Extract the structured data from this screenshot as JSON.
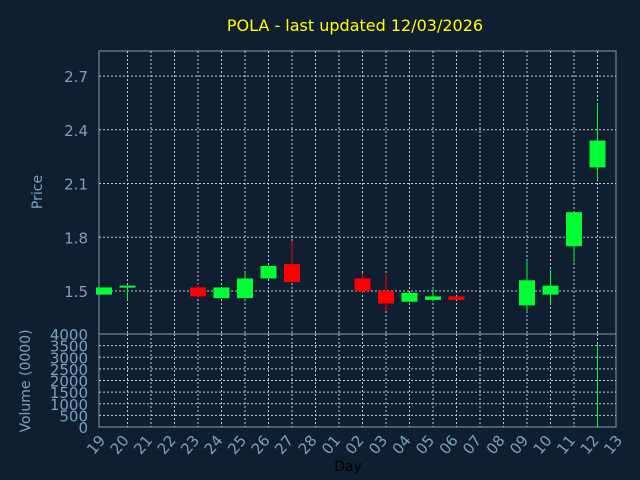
{
  "chart_data": {
    "type": "candlestick",
    "title": "POLA - last updated 12/03/2026",
    "x_label": "Day",
    "price_label": "Price",
    "volume_label": "Volume (0000)",
    "x_ticks": [
      "19",
      "20",
      "21",
      "22",
      "23",
      "24",
      "25",
      "26",
      "27",
      "28",
      "01",
      "02",
      "03",
      "04",
      "05",
      "06",
      "07",
      "08",
      "09",
      "10",
      "11",
      "12",
      "13"
    ],
    "price_ticks": [
      "1.5",
      "1.8",
      "2.1",
      "2.4",
      "2.7"
    ],
    "price_range": [
      1.26,
      2.84
    ],
    "volume_ticks": [
      "0",
      "500",
      "1000",
      "1500",
      "2000",
      "2500",
      "3000",
      "3500",
      "4000"
    ],
    "volume_range": [
      0,
      4000
    ],
    "candles": [
      {
        "day": "19",
        "open": 1.48,
        "close": 1.52,
        "high": 1.52,
        "low": 1.48
      },
      {
        "day": "20",
        "open": 1.52,
        "close": 1.53,
        "high": 1.53,
        "low": 1.45
      },
      {
        "day": "23",
        "open": 1.52,
        "close": 1.47,
        "high": 1.54,
        "low": 1.46
      },
      {
        "day": "24",
        "open": 1.46,
        "close": 1.52,
        "high": 1.52,
        "low": 1.46
      },
      {
        "day": "25",
        "open": 1.46,
        "close": 1.57,
        "high": 1.61,
        "low": 1.46
      },
      {
        "day": "26",
        "open": 1.57,
        "close": 1.64,
        "high": 1.64,
        "low": 1.57
      },
      {
        "day": "27",
        "open": 1.65,
        "close": 1.55,
        "high": 1.78,
        "low": 1.55
      },
      {
        "day": "02",
        "open": 1.57,
        "close": 1.5,
        "high": 1.6,
        "low": 1.49
      },
      {
        "day": "03",
        "open": 1.5,
        "close": 1.43,
        "high": 1.59,
        "low": 1.39
      },
      {
        "day": "04",
        "open": 1.44,
        "close": 1.49,
        "high": 1.49,
        "low": 1.44
      },
      {
        "day": "05",
        "open": 1.45,
        "close": 1.47,
        "high": 1.52,
        "low": 1.44
      },
      {
        "day": "06",
        "open": 1.47,
        "close": 1.45,
        "high": 1.47,
        "low": 1.45
      },
      {
        "day": "09",
        "open": 1.42,
        "close": 1.56,
        "high": 1.67,
        "low": 1.38
      },
      {
        "day": "10",
        "open": 1.48,
        "close": 1.53,
        "high": 1.62,
        "low": 1.42
      },
      {
        "day": "11",
        "open": 1.75,
        "close": 1.94,
        "high": 1.94,
        "low": 1.66
      },
      {
        "day": "12",
        "open": 2.19,
        "close": 2.34,
        "high": 2.55,
        "low": 2.12
      }
    ],
    "volume": [
      {
        "day": "09",
        "value": 60
      },
      {
        "day": "10",
        "value": 40
      },
      {
        "day": "11",
        "value": 90
      },
      {
        "day": "12",
        "value": 3600
      }
    ],
    "colors": {
      "background": "#0f1f31",
      "up": "#00ff33",
      "down": "#ff0000",
      "grid": "#c8c8c8",
      "frame": "#8a9bb0",
      "title": "#ffff00",
      "tick": "#7f9fbf",
      "axis_label": "#7f9fbf",
      "x_label": "#000000",
      "volume_bar": "#00ff33"
    },
    "grid": true
  }
}
